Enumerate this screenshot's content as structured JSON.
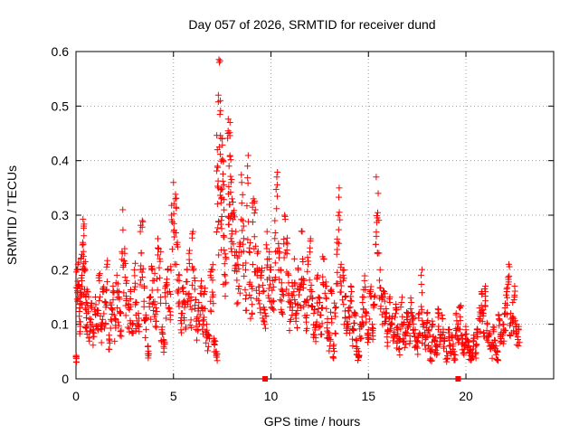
{
  "chart_data": {
    "type": "scatter",
    "title": "Day 057 of 2026, SRMTID for receiver dund",
    "xlabel": "GPS time / hours",
    "ylabel": "SRMTID / TECUs",
    "xlim": [
      0,
      24.5
    ],
    "ylim": [
      0,
      0.6
    ],
    "xticks": [
      0,
      5,
      10,
      15,
      20
    ],
    "xtick_labels": [
      "0",
      "5",
      "10",
      "15",
      "20"
    ],
    "yticks": [
      0,
      0.1,
      0.2,
      0.3,
      0.4,
      0.5,
      0.6
    ],
    "ytick_labels": [
      "0",
      "0.1",
      "0.2",
      "0.3",
      "0.4",
      "0.5",
      "0.6"
    ],
    "grid": true,
    "marker": "plus",
    "color": "#ff0000",
    "series": [
      {
        "name": "SRMTID",
        "x": [
          0.0,
          0.05,
          0.1,
          0.15,
          0.2,
          0.25,
          0.3,
          0.35,
          0.4,
          0.45,
          0.5,
          0.55,
          0.6,
          0.7,
          0.8,
          0.9,
          1.0,
          1.1,
          1.2,
          1.3,
          1.4,
          1.5,
          1.6,
          1.7,
          1.8,
          1.9,
          2.0,
          2.1,
          2.2,
          2.3,
          2.4,
          2.5,
          2.6,
          2.7,
          2.8,
          2.9,
          3.0,
          3.1,
          3.2,
          3.3,
          3.4,
          3.5,
          3.6,
          3.7,
          3.8,
          3.9,
          4.0,
          4.1,
          4.2,
          4.3,
          4.4,
          4.5,
          4.6,
          4.7,
          4.8,
          4.9,
          5.0,
          5.1,
          5.2,
          5.3,
          5.4,
          5.5,
          5.6,
          5.7,
          5.8,
          5.9,
          6.0,
          6.1,
          6.2,
          6.3,
          6.4,
          6.5,
          6.6,
          6.7,
          6.8,
          6.9,
          7.0,
          7.1,
          7.2,
          7.25,
          7.3,
          7.35,
          7.4,
          7.45,
          7.5,
          7.55,
          7.6,
          7.7,
          7.8,
          7.85,
          7.9,
          7.95,
          8.0,
          8.1,
          8.2,
          8.3,
          8.4,
          8.5,
          8.6,
          8.7,
          8.8,
          8.9,
          9.0,
          9.1,
          9.2,
          9.3,
          9.4,
          9.5,
          9.6,
          9.7,
          9.8,
          9.9,
          10.0,
          10.1,
          10.2,
          10.3,
          10.4,
          10.5,
          10.6,
          10.7,
          10.8,
          10.9,
          11.0,
          11.1,
          11.2,
          11.3,
          11.4,
          11.5,
          11.6,
          11.7,
          11.8,
          11.9,
          12.0,
          12.1,
          12.2,
          12.3,
          12.4,
          12.5,
          12.6,
          12.7,
          12.8,
          12.9,
          13.0,
          13.1,
          13.2,
          13.3,
          13.4,
          13.5,
          13.6,
          13.7,
          13.8,
          13.9,
          14.0,
          14.1,
          14.2,
          14.3,
          14.4,
          14.5,
          14.6,
          14.7,
          14.8,
          14.9,
          15.0,
          15.1,
          15.2,
          15.3,
          15.4,
          15.5,
          15.6,
          15.7,
          15.8,
          15.9,
          16.0,
          16.1,
          16.2,
          16.3,
          16.4,
          16.5,
          16.6,
          16.7,
          16.8,
          16.9,
          17.0,
          17.1,
          17.2,
          17.3,
          17.4,
          17.5,
          17.6,
          17.7,
          17.8,
          17.9,
          18.0,
          18.1,
          18.2,
          18.3,
          18.4,
          18.5,
          18.6,
          18.7,
          18.8,
          18.9,
          19.0,
          19.1,
          19.2,
          19.3,
          19.4,
          19.5,
          19.6,
          19.7,
          19.8,
          19.9,
          20.0,
          20.1,
          20.2,
          20.3,
          20.4,
          20.5,
          20.6,
          20.7,
          20.8,
          20.9,
          21.0,
          21.1,
          21.2,
          21.3,
          21.4,
          21.5,
          21.6,
          21.7,
          21.8,
          21.9,
          22.0,
          22.1,
          22.2,
          22.3,
          22.4,
          22.5,
          22.6,
          22.7
        ],
        "y": [
          0.04,
          0.2,
          0.21,
          0.17,
          0.13,
          0.22,
          0.18,
          0.25,
          0.28,
          0.2,
          0.15,
          0.12,
          0.16,
          0.11,
          0.13,
          0.09,
          0.15,
          0.12,
          0.18,
          0.1,
          0.16,
          0.14,
          0.21,
          0.08,
          0.13,
          0.17,
          0.11,
          0.19,
          0.15,
          0.12,
          0.31,
          0.23,
          0.18,
          0.13,
          0.16,
          0.1,
          0.2,
          0.14,
          0.12,
          0.27,
          0.29,
          0.17,
          0.11,
          0.06,
          0.15,
          0.2,
          0.18,
          0.13,
          0.24,
          0.22,
          0.09,
          0.07,
          0.17,
          0.2,
          0.16,
          0.3,
          0.36,
          0.33,
          0.25,
          0.19,
          0.12,
          0.16,
          0.14,
          0.2,
          0.23,
          0.15,
          0.27,
          0.18,
          0.11,
          0.14,
          0.17,
          0.13,
          0.16,
          0.1,
          0.08,
          0.19,
          0.2,
          0.07,
          0.05,
          0.42,
          0.35,
          0.58,
          0.51,
          0.33,
          0.44,
          0.4,
          0.26,
          0.22,
          0.45,
          0.39,
          0.47,
          0.36,
          0.33,
          0.3,
          0.27,
          0.21,
          0.25,
          0.36,
          0.28,
          0.2,
          0.39,
          0.24,
          0.17,
          0.33,
          0.31,
          0.23,
          0.2,
          0.19,
          0.16,
          0.12,
          0.27,
          0.22,
          0.2,
          0.18,
          0.29,
          0.37,
          0.24,
          0.2,
          0.16,
          0.3,
          0.25,
          0.19,
          0.14,
          0.17,
          0.22,
          0.12,
          0.2,
          0.17,
          0.27,
          0.18,
          0.14,
          0.21,
          0.24,
          0.16,
          0.12,
          0.1,
          0.19,
          0.14,
          0.13,
          0.22,
          0.17,
          0.11,
          0.08,
          0.16,
          0.06,
          0.13,
          0.25,
          0.35,
          0.21,
          0.19,
          0.15,
          0.1,
          0.13,
          0.17,
          0.09,
          0.12,
          0.07,
          0.05,
          0.1,
          0.14,
          0.18,
          0.12,
          0.09,
          0.16,
          0.1,
          0.15,
          0.37,
          0.34,
          0.2,
          0.15,
          0.16,
          0.12,
          0.09,
          0.14,
          0.11,
          0.08,
          0.13,
          0.09,
          0.07,
          0.14,
          0.1,
          0.08,
          0.12,
          0.1,
          0.14,
          0.11,
          0.09,
          0.07,
          0.12,
          0.19,
          0.1,
          0.08,
          0.12,
          0.09,
          0.05,
          0.1,
          0.07,
          0.06,
          0.12,
          0.08,
          0.11,
          0.07,
          0.05,
          0.09,
          0.06,
          0.08,
          0.05,
          0.12,
          0.1,
          0.13,
          0.08,
          0.06,
          0.09,
          0.07,
          0.05,
          0.04,
          0.08,
          0.06,
          0.09,
          0.13,
          0.16,
          0.12,
          0.17,
          0.1,
          0.08,
          0.06,
          0.09,
          0.07,
          0.05,
          0.11,
          0.08,
          0.1,
          0.13,
          0.16,
          0.21,
          0.12,
          0.14,
          0.17,
          0.1,
          0.09
        ]
      }
    ],
    "markers_on_axis": [
      {
        "x": 9.7,
        "y": 0
      },
      {
        "x": 19.6,
        "y": 0
      }
    ]
  }
}
